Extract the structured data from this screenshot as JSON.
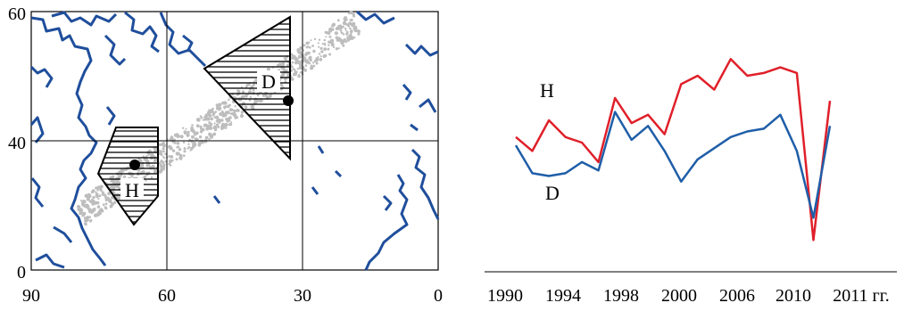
{
  "map": {
    "x_ticks": [
      "90",
      "60",
      "30",
      "0"
    ],
    "y_ticks": [
      "60",
      "40",
      "0"
    ],
    "regions": [
      {
        "label": "D",
        "point": [
          33,
          52
        ]
      },
      {
        "label": "H",
        "point": [
          67,
          34
        ]
      }
    ]
  },
  "chart_data": {
    "type": "line",
    "x_tick_labels": [
      "1990",
      "1994",
      "1998",
      "2000",
      "2006",
      "2010",
      "2011 гг."
    ],
    "series": [
      {
        "name": "H",
        "color": "#e0202a",
        "values": [
          42,
          37,
          48,
          42,
          40,
          33,
          56,
          47,
          50,
          43,
          61,
          64,
          59,
          70,
          64,
          65,
          67,
          65,
          5,
          55
        ]
      },
      {
        "name": "D",
        "color": "#1f5ea8",
        "values": [
          39,
          29,
          28,
          29,
          33,
          30,
          51,
          41,
          46,
          37,
          26,
          34,
          38,
          42,
          44,
          45,
          50,
          37,
          13,
          46
        ]
      }
    ],
    "series_labels": [
      "H",
      "D"
    ],
    "ylim": [
      0,
      80
    ],
    "grid": false
  },
  "colors": {
    "coast": "#1f4e9c",
    "track": "#bdbdbd",
    "ink": "#000000"
  }
}
